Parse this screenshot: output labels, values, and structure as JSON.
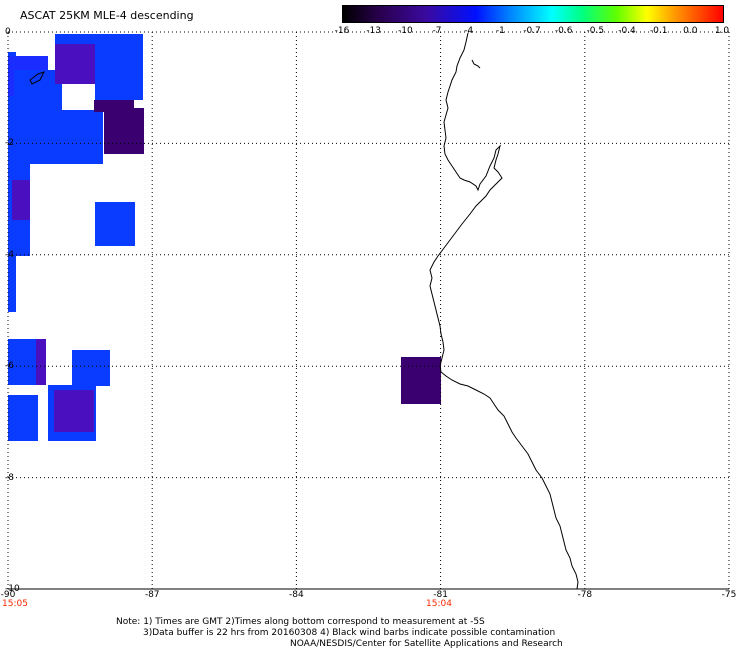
{
  "title": "ASCAT 25KM MLE-4 descending",
  "colorbar": {
    "labels": [
      "-16",
      "-13",
      "-10",
      "-7",
      "-4",
      "-1",
      "-0.7",
      "-0.6",
      "-0.5",
      "-0.4",
      "-0.1",
      "0.0",
      "1.0"
    ]
  },
  "axes": {
    "x_ticks": [
      "-90",
      "-87",
      "-84",
      "-81",
      "-78",
      "-75"
    ],
    "y_ticks": [
      "0",
      "-2",
      "-4",
      "-6",
      "-8",
      "-10"
    ],
    "x_range": [
      -90,
      -75
    ],
    "y_range": [
      -10,
      0
    ],
    "grid": true
  },
  "times": {
    "left": "15:05",
    "center": "15:04"
  },
  "notes": {
    "line1": "Note: 1) Times are GMT 2)Times along bottom correspond to measurement at -5S",
    "line2": "3)Data buffer is 22 hrs from 20160308 4) Black wind barbs indicate possible contamination",
    "line3": "NOAA/NESDIS/Center for Satellite Applications and Research"
  },
  "colors": {
    "blue": "#0a3cff",
    "royal": "#1a2cff",
    "violet": "#4a10c0",
    "dark_purple": "#3a0070",
    "coast": "#000000"
  }
}
